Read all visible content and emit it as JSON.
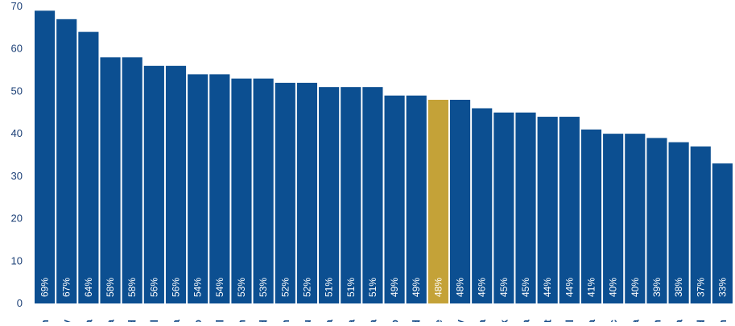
{
  "chart_data": {
    "type": "bar",
    "title": "",
    "xlabel": "",
    "ylabel": "",
    "ylim": [
      0,
      70
    ],
    "yticks": [
      0,
      10,
      20,
      30,
      40,
      50,
      60,
      70
    ],
    "grid": false,
    "legend": "none",
    "categories": [
      "n",
      "y",
      "a",
      "a",
      "d",
      "il",
      "a",
      "o",
      "al",
      "n",
      "d",
      "n",
      "u",
      "a",
      "a",
      "a",
      "o",
      "d",
      "e",
      "y",
      "a",
      "k",
      "a",
      "nt",
      "al",
      "a",
      "ic",
      "a",
      "n",
      "a",
      "d",
      "n"
    ],
    "values": [
      69,
      67,
      64,
      58,
      58,
      56,
      56,
      54,
      54,
      53,
      53,
      52,
      52,
      51,
      51,
      51,
      49,
      49,
      48,
      48,
      46,
      45,
      45,
      44,
      44,
      41,
      40,
      40,
      39,
      38,
      37,
      33
    ],
    "data_labels": [
      "69%",
      "67%",
      "64%",
      "58%",
      "58%",
      "56%",
      "56%",
      "54%",
      "54%",
      "53%",
      "53%",
      "52%",
      "52%",
      "51%",
      "51%",
      "51%",
      "49%",
      "49%",
      "48%",
      "48%",
      "46%",
      "45%",
      "45%",
      "44%",
      "44%",
      "41%",
      "40%",
      "40%",
      "39%",
      "38%",
      "37%",
      "33%"
    ],
    "highlight_index": 18,
    "colors": {
      "bar": "#0c4f91",
      "highlight": "#c4a238",
      "axis_text": "#1b3f76",
      "category_text": "#1b4f8a"
    }
  }
}
